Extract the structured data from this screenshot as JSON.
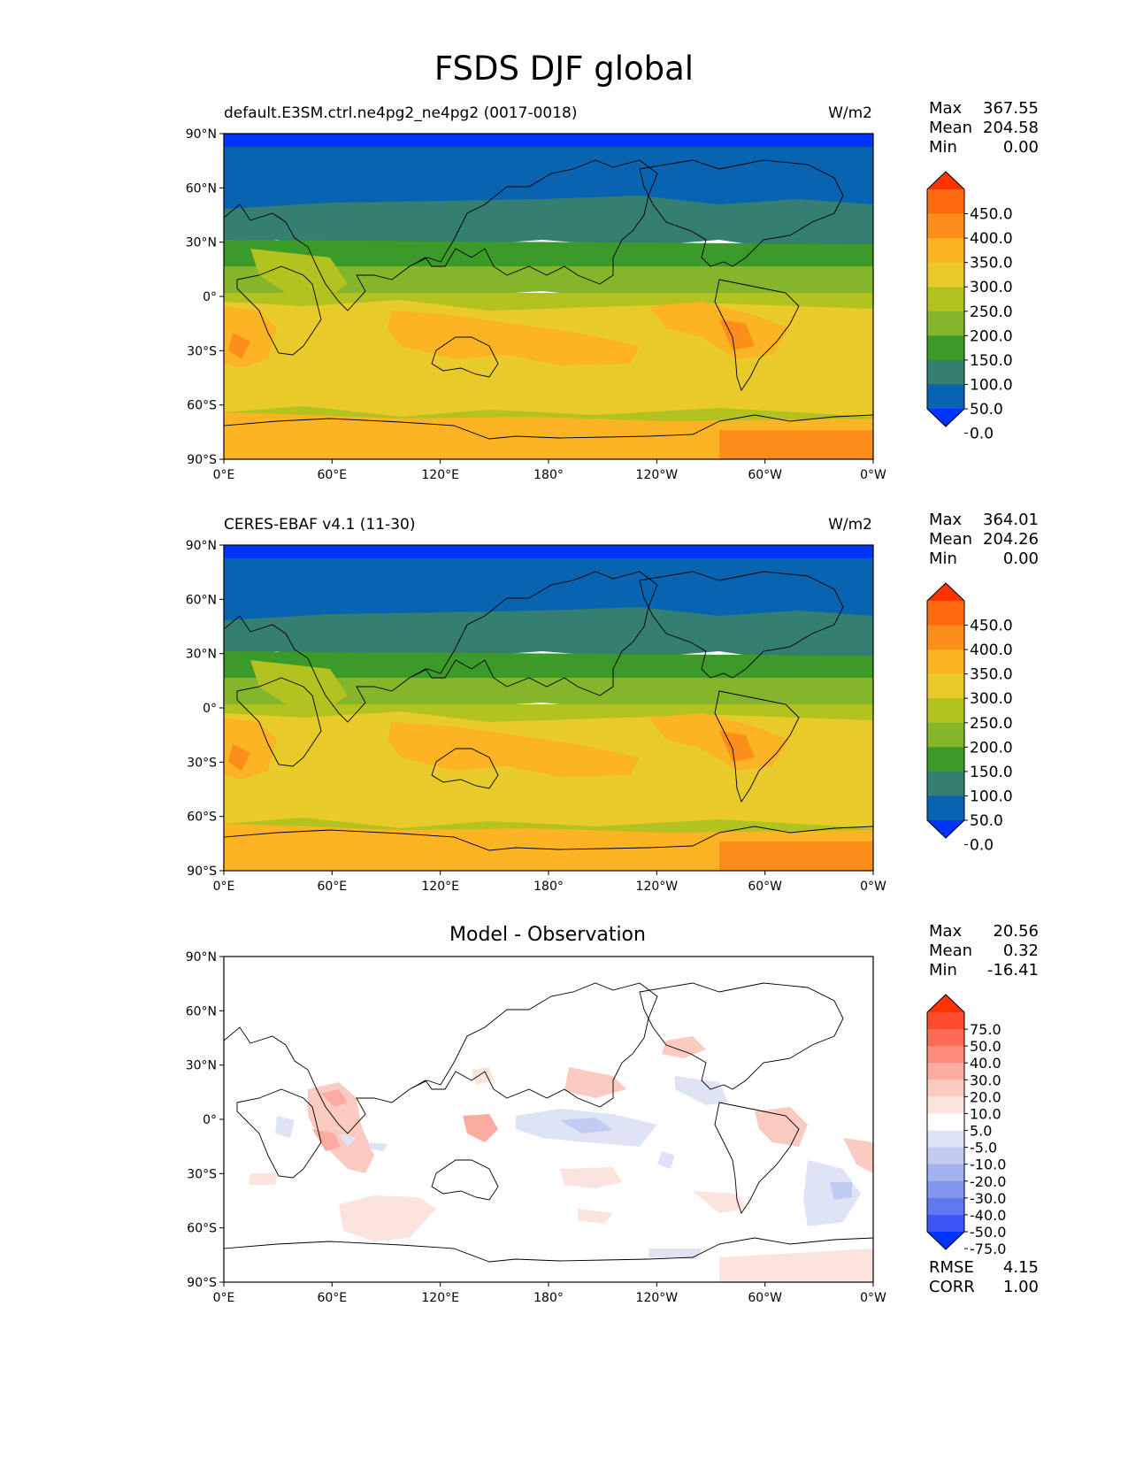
{
  "title": "FSDS DJF global",
  "axes": {
    "lon_ticks": [
      "0°E",
      "60°E",
      "120°E",
      "180°",
      "120°W",
      "60°W",
      "0°W"
    ],
    "lat_ticks": [
      "90°N",
      "60°N",
      "30°N",
      "0°",
      "30°S",
      "60°S",
      "90°S"
    ]
  },
  "panels": [
    {
      "id": "test",
      "left_title": "default.E3SM.ctrl.ne4pg2_ne4pg2 (0017-0018)",
      "center_title": "",
      "units": "W/m2",
      "stats": [
        {
          "label": "Max",
          "value": "367.55"
        },
        {
          "label": "Mean",
          "value": "204.58"
        },
        {
          "label": "Min",
          "value": "0.00"
        }
      ],
      "colorbar": {
        "levels": [
          "450.0",
          "400.0",
          "350.0",
          "300.0",
          "250.0",
          "200.0",
          "150.0",
          "100.0",
          "50.0",
          "0.0"
        ],
        "colors": [
          "#ff3300",
          "#ff6a10",
          "#fd8e19",
          "#fcb324",
          "#e8cb2b",
          "#b2c21e",
          "#84b52a",
          "#3c9b28",
          "#347e72",
          "#0863b0",
          "#0033ff"
        ]
      }
    },
    {
      "id": "ref",
      "left_title": "CERES-EBAF v4.1 (11-30)",
      "center_title": "",
      "units": "W/m2",
      "stats": [
        {
          "label": "Max",
          "value": "364.01"
        },
        {
          "label": "Mean",
          "value": "204.26"
        },
        {
          "label": "Min",
          "value": "0.00"
        }
      ],
      "colorbar": {
        "levels": [
          "450.0",
          "400.0",
          "350.0",
          "300.0",
          "250.0",
          "200.0",
          "150.0",
          "100.0",
          "50.0",
          "0.0"
        ],
        "colors": [
          "#ff3300",
          "#ff6a10",
          "#fd8e19",
          "#fcb324",
          "#e8cb2b",
          "#b2c21e",
          "#84b52a",
          "#3c9b28",
          "#347e72",
          "#0863b0",
          "#0033ff"
        ]
      }
    },
    {
      "id": "diff",
      "left_title": "",
      "center_title": "Model - Observation",
      "units": "",
      "stats": [
        {
          "label": "Max",
          "value": "20.56"
        },
        {
          "label": "Mean",
          "value": "0.32"
        },
        {
          "label": "Min",
          "value": "-16.41"
        }
      ],
      "extra_stats": [
        {
          "label": "RMSE",
          "value": "4.15"
        },
        {
          "label": "CORR",
          "value": "1.00"
        }
      ],
      "colorbar": {
        "levels": [
          "75.0",
          "50.0",
          "40.0",
          "30.0",
          "20.0",
          "10.0",
          "5.0",
          "-5.0",
          "-10.0",
          "-20.0",
          "-30.0",
          "-40.0",
          "-50.0",
          "-75.0"
        ],
        "colors": [
          "#ff3300",
          "#fe4a2e",
          "#fe6b55",
          "#fd8c7c",
          "#fbab9f",
          "#fbcac0",
          "#fbe4de",
          "#ffffff",
          "#dfe3f6",
          "#c2cbf1",
          "#a3b1ee",
          "#8396ef",
          "#6278f1",
          "#3d57f6",
          "#0033ff"
        ]
      }
    }
  ]
}
